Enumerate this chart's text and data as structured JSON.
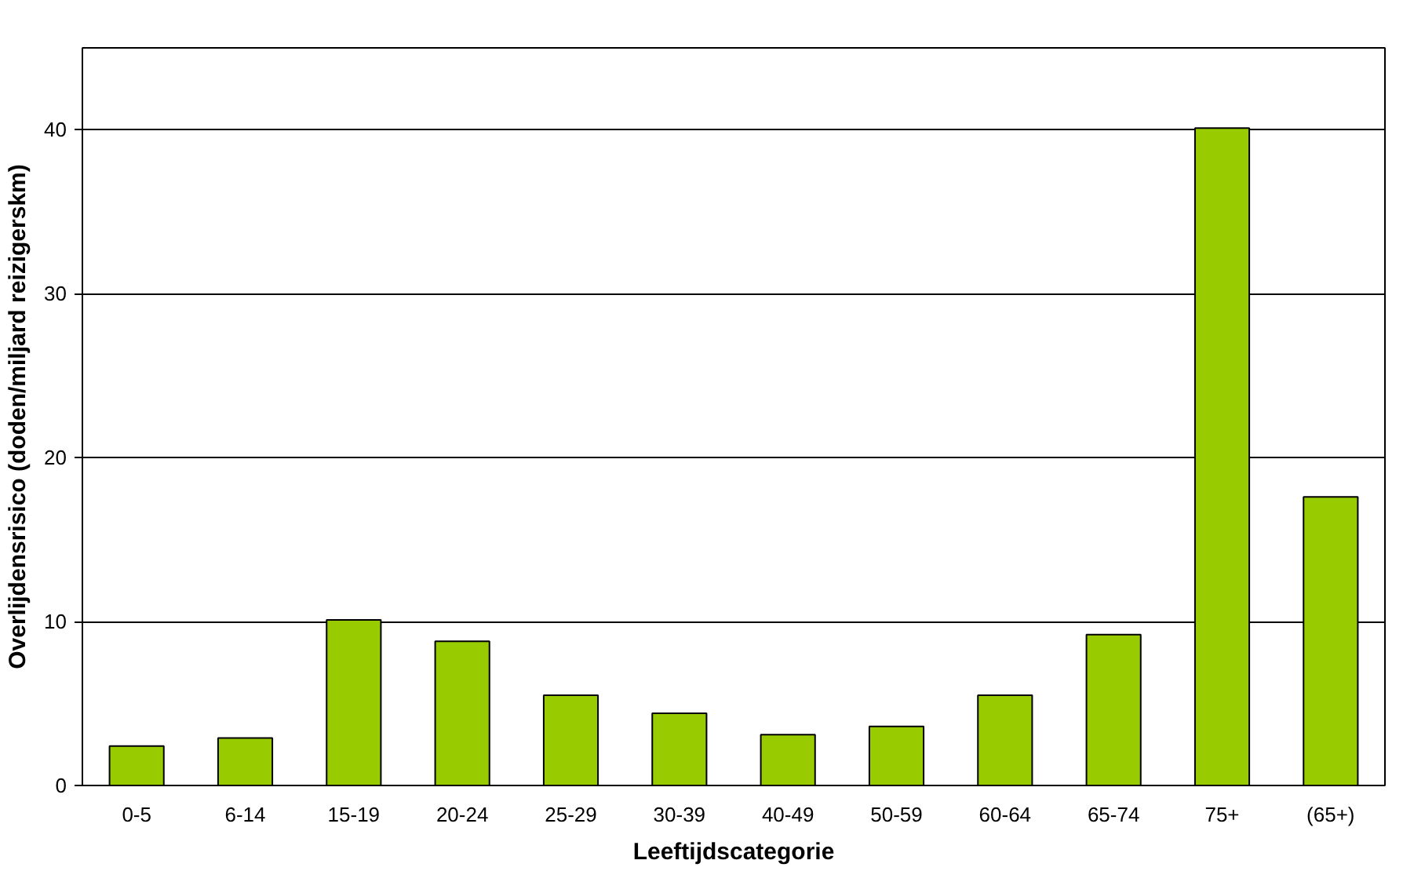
{
  "chart_data": {
    "type": "bar",
    "xlabel": "Leeftijdscategorie",
    "ylabel": "Overlijdensrisico (doden/miljard reizigerskm)",
    "categories": [
      "0-5",
      "6-14",
      "15-19",
      "20-24",
      "25-29",
      "30-39",
      "40-49",
      "50-59",
      "60-64",
      "65-74",
      "75+",
      "(65+)"
    ],
    "values": [
      2.4,
      2.9,
      10.1,
      8.8,
      5.5,
      4.4,
      3.1,
      3.6,
      5.5,
      9.2,
      40.1,
      17.6
    ],
    "color": "#99cc00",
    "ylim": [
      0,
      45
    ],
    "yticks": [
      0,
      10,
      20,
      30,
      40
    ],
    "grid": "y"
  }
}
